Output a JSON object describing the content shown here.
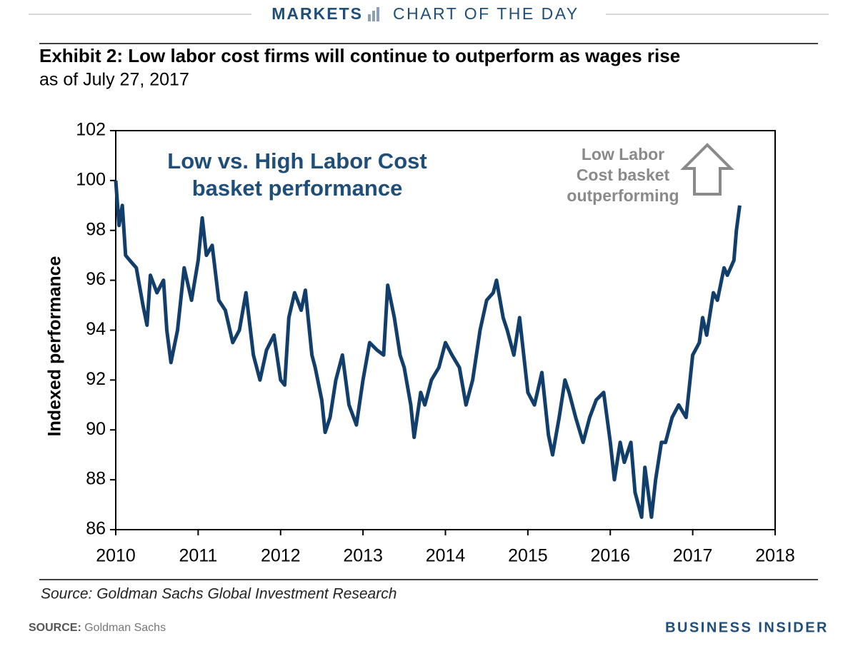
{
  "header": {
    "section": "MARKETS",
    "feature": "CHART OF THE DAY"
  },
  "chart_data": {
    "type": "line",
    "title": "Exhibit 2: Low labor cost firms will continue to outperform as wages rise",
    "subtitle": "as of July 27, 2017",
    "y_label": "Indexed performance",
    "annotations": [
      {
        "lines": [
          "Low vs. High Labor Cost",
          "basket performance"
        ]
      },
      {
        "lines": [
          "Low Labor",
          "Cost basket",
          "outperforming"
        ]
      }
    ],
    "source": "Source: Goldman Sachs Global Investment Research",
    "xlim": [
      2010,
      2018
    ],
    "xticks": [
      2010,
      2011,
      2012,
      2013,
      2014,
      2015,
      2016,
      2017,
      2018
    ],
    "ylim": [
      86,
      102
    ],
    "yticks": [
      86,
      88,
      90,
      92,
      94,
      96,
      98,
      100,
      102
    ],
    "series": [
      {
        "color": "#123e6b",
        "x": [
          2010.0,
          2010.04,
          2010.08,
          2010.12,
          2010.17,
          2010.25,
          2010.33,
          2010.38,
          2010.42,
          2010.5,
          2010.58,
          2010.62,
          2010.67,
          2010.75,
          2010.83,
          2010.92,
          2011.0,
          2011.05,
          2011.1,
          2011.17,
          2011.25,
          2011.33,
          2011.42,
          2011.5,
          2011.58,
          2011.67,
          2011.75,
          2011.83,
          2011.92,
          2012.0,
          2012.05,
          2012.1,
          2012.17,
          2012.25,
          2012.3,
          2012.38,
          2012.42,
          2012.5,
          2012.54,
          2012.6,
          2012.67,
          2012.75,
          2012.83,
          2012.92,
          2013.0,
          2013.08,
          2013.17,
          2013.25,
          2013.3,
          2013.38,
          2013.45,
          2013.5,
          2013.58,
          2013.62,
          2013.7,
          2013.75,
          2013.83,
          2013.92,
          2014.0,
          2014.08,
          2014.17,
          2014.25,
          2014.33,
          2014.42,
          2014.5,
          2014.58,
          2014.62,
          2014.7,
          2014.75,
          2014.83,
          2014.9,
          2015.0,
          2015.08,
          2015.17,
          2015.25,
          2015.3,
          2015.38,
          2015.45,
          2015.5,
          2015.58,
          2015.67,
          2015.75,
          2015.83,
          2015.92,
          2016.0,
          2016.05,
          2016.12,
          2016.17,
          2016.25,
          2016.3,
          2016.38,
          2016.42,
          2016.5,
          2016.55,
          2016.62,
          2016.67,
          2016.75,
          2016.83,
          2016.92,
          2017.0,
          2017.08,
          2017.12,
          2017.17,
          2017.25,
          2017.3,
          2017.38,
          2017.42,
          2017.5,
          2017.53,
          2017.57
        ],
        "values": [
          100,
          98.2,
          99,
          97,
          96.8,
          96.5,
          95,
          94.2,
          96.2,
          95.5,
          96,
          94,
          92.7,
          94,
          96.5,
          95.2,
          96.8,
          98.5,
          97,
          97.4,
          95.2,
          94.8,
          93.5,
          94,
          95.5,
          93,
          92,
          93.2,
          93.8,
          92,
          91.8,
          94.5,
          95.5,
          94.8,
          95.6,
          93,
          92.5,
          91.2,
          89.9,
          90.5,
          92,
          93,
          91,
          90.2,
          92,
          93.5,
          93.2,
          93,
          95.8,
          94.5,
          93,
          92.5,
          91,
          89.7,
          91.5,
          91,
          92,
          92.5,
          93.5,
          93,
          92.5,
          91,
          92,
          94,
          95.2,
          95.5,
          96,
          94.5,
          94,
          93,
          94.5,
          91.5,
          91,
          92.3,
          89.8,
          89,
          90.5,
          92,
          91.5,
          90.5,
          89.5,
          90.5,
          91.2,
          91.5,
          89.5,
          88,
          89.5,
          88.7,
          89.5,
          87.5,
          86.5,
          88.5,
          86.5,
          88,
          89.5,
          89.5,
          90.5,
          91,
          90.5,
          93,
          93.5,
          94.5,
          93.8,
          95.5,
          95.2,
          96.5,
          96.2,
          96.8,
          98,
          99
        ]
      }
    ]
  },
  "footer": {
    "source_label": "SOURCE:",
    "source_text": "Goldman Sachs",
    "brand": "BUSINESS INSIDER"
  }
}
